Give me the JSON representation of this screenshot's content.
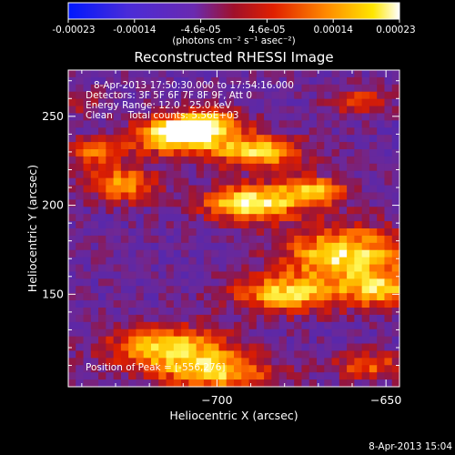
{
  "chart_data": {
    "type": "heatmap",
    "title": "Reconstructed RHESSI Image",
    "xlabel": "Heliocentric X (arcsec)",
    "ylabel": "Heliocentric Y (arcsec)",
    "xlim": [
      -744,
      -646
    ],
    "ylim": [
      98,
      276
    ],
    "xticks": [
      -700,
      -650,
      -600
    ],
    "yticks": [
      150,
      200,
      250
    ],
    "colorbar": {
      "ticks": [
        "-0.00023",
        "-0.00014",
        "-4.6e-05",
        "4.6e-05",
        "0.00014",
        "0.00023"
      ],
      "range": [
        -0.00023,
        0.00023
      ],
      "unit": "(photons cm⁻² s⁻¹ asec⁻²)",
      "colors": [
        "#0018ff",
        "#4a2bd8",
        "#7a2aa0",
        "#a0102a",
        "#ff6a00",
        "#ffe600",
        "#ffffff"
      ]
    },
    "annotations": {
      "time_range": "8-Apr-2013 17:50:30.000 to 17:54:16.000",
      "detectors": "Detectors: 3F 5F 6F 7F 8F 9F, Att 0",
      "energy": "Energy Range: 12.0 - 25.0 keV",
      "clean": "Clean     Total counts: 5.56E+03",
      "peak": "Position of Peak = [-556,276]"
    },
    "peak_position": [
      -556,
      276
    ],
    "total_counts": 5560,
    "energy_range_kev": [
      12.0,
      25.0
    ]
  },
  "footer": {
    "date": "8-Apr-2013 15:04"
  }
}
